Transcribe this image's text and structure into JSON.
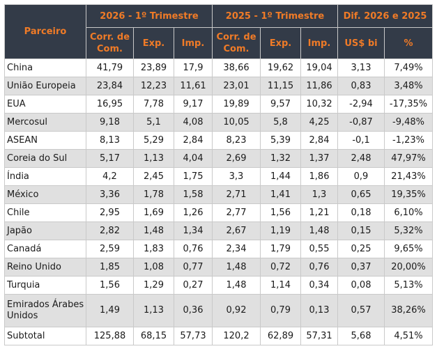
{
  "header": {
    "partner": "Parceiro",
    "group_2026": "2026 - 1º Trimestre",
    "group_2025": "2025 - 1º Trimestre",
    "group_diff": "Dif. 2026 e 2025",
    "sub_corr": "Corr. de Com.",
    "sub_exp": "Exp.",
    "sub_imp": "Imp.",
    "sub_usd": "US$ bi",
    "sub_pct": "%"
  },
  "rows": [
    {
      "partner": "China",
      "c26": "41,79",
      "e26": "23,89",
      "i26": "17,9",
      "c25": "38,66",
      "e25": "19,62",
      "i25": "19,04",
      "usd": "3,13",
      "pct": "7,49%"
    },
    {
      "partner": "União Europeia",
      "c26": "23,84",
      "e26": "12,23",
      "i26": "11,61",
      "c25": "23,01",
      "e25": "11,15",
      "i25": "11,86",
      "usd": "0,83",
      "pct": "3,48%"
    },
    {
      "partner": "EUA",
      "c26": "16,95",
      "e26": "7,78",
      "i26": "9,17",
      "c25": "19,89",
      "e25": "9,57",
      "i25": "10,32",
      "usd": "-2,94",
      "pct": "-17,35%"
    },
    {
      "partner": "Mercosul",
      "c26": "9,18",
      "e26": "5,1",
      "i26": "4,08",
      "c25": "10,05",
      "e25": "5,8",
      "i25": "4,25",
      "usd": "-0,87",
      "pct": "-9,48%"
    },
    {
      "partner": "ASEAN",
      "c26": "8,13",
      "e26": "5,29",
      "i26": "2,84",
      "c25": "8,23",
      "e25": "5,39",
      "i25": "2,84",
      "usd": "-0,1",
      "pct": "-1,23%"
    },
    {
      "partner": "Coreia do Sul",
      "c26": "5,17",
      "e26": "1,13",
      "i26": "4,04",
      "c25": "2,69",
      "e25": "1,32",
      "i25": "1,37",
      "usd": "2,48",
      "pct": "47,97%"
    },
    {
      "partner": "Índia",
      "c26": "4,2",
      "e26": "2,45",
      "i26": "1,75",
      "c25": "3,3",
      "e25": "1,44",
      "i25": "1,86",
      "usd": "0,9",
      "pct": "21,43%"
    },
    {
      "partner": "México",
      "c26": "3,36",
      "e26": "1,78",
      "i26": "1,58",
      "c25": "2,71",
      "e25": "1,41",
      "i25": "1,3",
      "usd": "0,65",
      "pct": "19,35%"
    },
    {
      "partner": "Chile",
      "c26": "2,95",
      "e26": "1,69",
      "i26": "1,26",
      "c25": "2,77",
      "e25": "1,56",
      "i25": "1,21",
      "usd": "0,18",
      "pct": "6,10%"
    },
    {
      "partner": "Japão",
      "c26": "2,82",
      "e26": "1,48",
      "i26": "1,34",
      "c25": "2,67",
      "e25": "1,19",
      "i25": "1,48",
      "usd": "0,15",
      "pct": "5,32%"
    },
    {
      "partner": "Canadá",
      "c26": "2,59",
      "e26": "1,83",
      "i26": "0,76",
      "c25": "2,34",
      "e25": "1,79",
      "i25": "0,55",
      "usd": "0,25",
      "pct": "9,65%"
    },
    {
      "partner": "Reino Unido",
      "c26": "1,85",
      "e26": "1,08",
      "i26": "0,77",
      "c25": "1,48",
      "e25": "0,72",
      "i25": "0,76",
      "usd": "0,37",
      "pct": "20,00%"
    },
    {
      "partner": "Turquia",
      "c26": "1,56",
      "e26": "1,29",
      "i26": "0,27",
      "c25": "1,48",
      "e25": "1,14",
      "i25": "0,34",
      "usd": "0,08",
      "pct": "5,13%"
    },
    {
      "partner": "Emirados Árabes Unidos",
      "c26": "1,49",
      "e26": "1,13",
      "i26": "0,36",
      "c25": "0,92",
      "e25": "0,79",
      "i25": "0,13",
      "usd": "0,57",
      "pct": "38,26%"
    },
    {
      "partner": "Subtotal",
      "c26": "125,88",
      "e26": "68,15",
      "i26": "57,73",
      "c25": "120,2",
      "e25": "62,89",
      "i25": "57,31",
      "usd": "5,68",
      "pct": "4,51%"
    }
  ]
}
